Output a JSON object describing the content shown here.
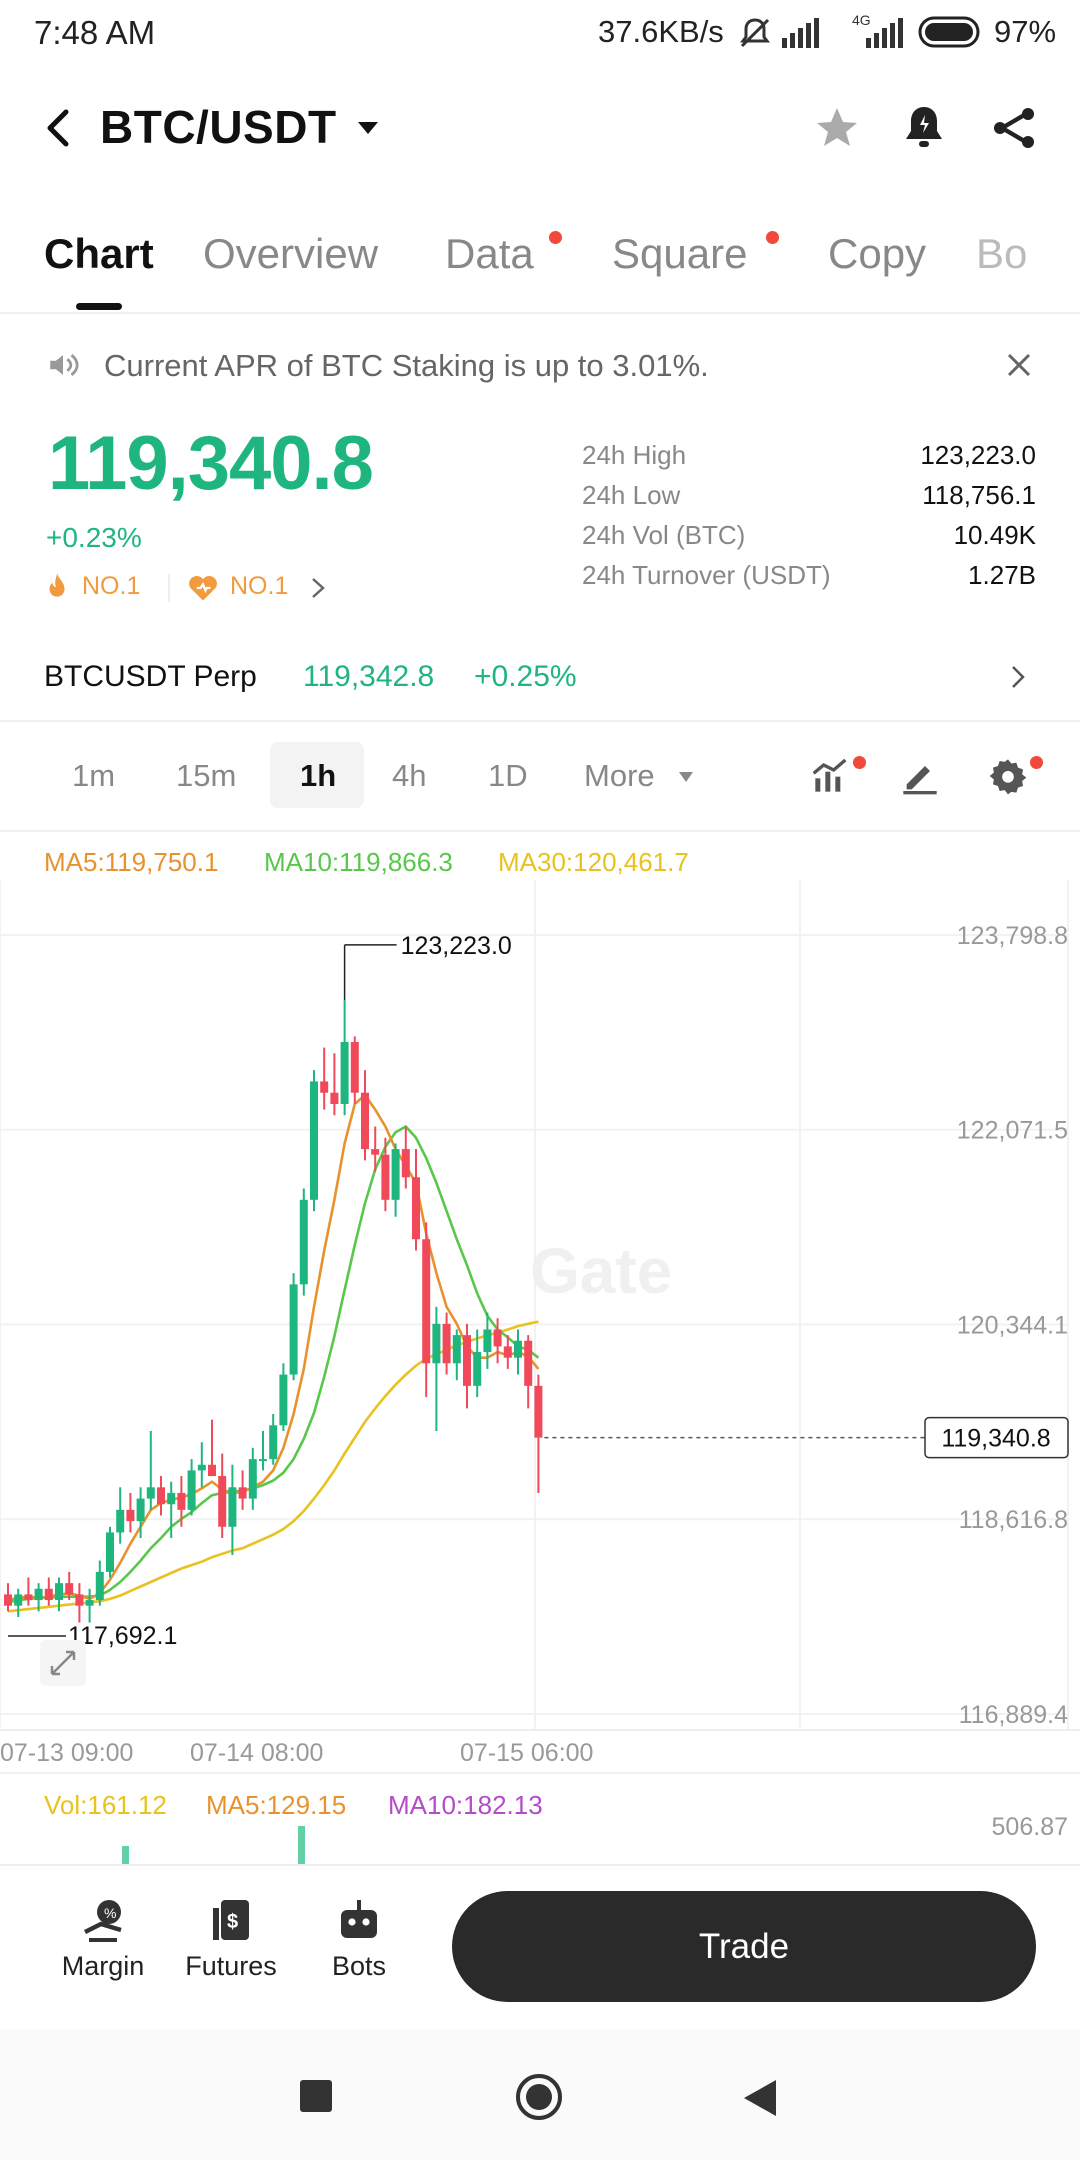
{
  "status_bar": {
    "time": "7:48 AM",
    "speed": "37.6KB/s",
    "network": "4G",
    "battery": "97%"
  },
  "header": {
    "title": "BTC/USDT"
  },
  "tabs": [
    {
      "label": "Chart",
      "active": true,
      "badge": false
    },
    {
      "label": "Overview",
      "active": false,
      "badge": false
    },
    {
      "label": "Data",
      "active": false,
      "badge": true
    },
    {
      "label": "Square",
      "active": false,
      "badge": true
    },
    {
      "label": "Copy",
      "active": false,
      "badge": false
    },
    {
      "label": "Bo",
      "active": false,
      "badge": false
    }
  ],
  "notice": {
    "text": "Current APR of BTC Staking is up to 3.01%."
  },
  "ticker": {
    "price": "119,340.8",
    "change": "+0.23%",
    "rank1": "NO.1",
    "rank2": "NO.1",
    "stats": [
      {
        "label": "24h High",
        "value": "123,223.0"
      },
      {
        "label": "24h Low",
        "value": "118,756.1"
      },
      {
        "label": "24h Vol (BTC)",
        "value": "10.49K"
      },
      {
        "label": "24h Turnover (USDT)",
        "value": "1.27B"
      }
    ]
  },
  "perp": {
    "label": "BTCUSDT Perp",
    "price": "119,342.8",
    "change": "+0.25%"
  },
  "timeframes": [
    "1m",
    "15m",
    "1h",
    "4h",
    "1D",
    "More"
  ],
  "active_timeframe": "1h",
  "ma_legend": [
    {
      "label": "MA5:119,750.1",
      "color": "#e8922e"
    },
    {
      "label": "MA10:119,866.3",
      "color": "#57c84a"
    },
    {
      "label": "MA30:120,461.7",
      "color": "#e8c21e"
    }
  ],
  "chart_data": {
    "type": "candlestick",
    "y_ticks": [
      "123,798.8",
      "122,071.5",
      "120,344.1",
      "118,616.8",
      "116,889.4"
    ],
    "x_ticks": [
      "07-13 09:00",
      "07-14 08:00",
      "07-15 06:00"
    ],
    "ylim": [
      116889.4,
      123798.8
    ],
    "high_label": "123,223.0",
    "low_label": "117,692.1",
    "current_label": "119,340.8",
    "current_value": 119340.8,
    "watermark": "Gate",
    "up_color": "#1fb57f",
    "down_color": "#f04a5a",
    "candles": [
      {
        "o": 117950,
        "h": 118050,
        "l": 117800,
        "c": 117850
      },
      {
        "o": 117850,
        "h": 118000,
        "l": 117750,
        "c": 117950
      },
      {
        "o": 117950,
        "h": 118100,
        "l": 117850,
        "c": 117900
      },
      {
        "o": 117900,
        "h": 118050,
        "l": 117800,
        "c": 118000
      },
      {
        "o": 118000,
        "h": 118100,
        "l": 117850,
        "c": 117900
      },
      {
        "o": 117900,
        "h": 118100,
        "l": 117800,
        "c": 118050
      },
      {
        "o": 118050,
        "h": 118150,
        "l": 117900,
        "c": 117950
      },
      {
        "o": 117950,
        "h": 118050,
        "l": 117700,
        "c": 117850
      },
      {
        "o": 117850,
        "h": 118000,
        "l": 117700,
        "c": 117900
      },
      {
        "o": 117900,
        "h": 118250,
        "l": 117850,
        "c": 118150
      },
      {
        "o": 118150,
        "h": 118550,
        "l": 118100,
        "c": 118500
      },
      {
        "o": 118500,
        "h": 118900,
        "l": 118400,
        "c": 118700
      },
      {
        "o": 118700,
        "h": 118850,
        "l": 118500,
        "c": 118600
      },
      {
        "o": 118600,
        "h": 118900,
        "l": 118450,
        "c": 118800
      },
      {
        "o": 118800,
        "h": 119400,
        "l": 118700,
        "c": 118900
      },
      {
        "o": 118900,
        "h": 119000,
        "l": 118650,
        "c": 118750
      },
      {
        "o": 118750,
        "h": 118950,
        "l": 118450,
        "c": 118850
      },
      {
        "o": 118850,
        "h": 119000,
        "l": 118550,
        "c": 118700
      },
      {
        "o": 118700,
        "h": 119150,
        "l": 118650,
        "c": 119050
      },
      {
        "o": 119050,
        "h": 119300,
        "l": 118900,
        "c": 119100
      },
      {
        "o": 119100,
        "h": 119500,
        "l": 119000,
        "c": 119000
      },
      {
        "o": 119000,
        "h": 119200,
        "l": 118450,
        "c": 118550
      },
      {
        "o": 118550,
        "h": 119100,
        "l": 118300,
        "c": 118900
      },
      {
        "o": 118900,
        "h": 119050,
        "l": 118700,
        "c": 118800
      },
      {
        "o": 118800,
        "h": 119250,
        "l": 118700,
        "c": 119150
      },
      {
        "o": 119150,
        "h": 119400,
        "l": 119050,
        "c": 119150
      },
      {
        "o": 119150,
        "h": 119550,
        "l": 119100,
        "c": 119450
      },
      {
        "o": 119450,
        "h": 120000,
        "l": 119400,
        "c": 119900
      },
      {
        "o": 119900,
        "h": 120800,
        "l": 119850,
        "c": 120700
      },
      {
        "o": 120700,
        "h": 121550,
        "l": 120600,
        "c": 121450
      },
      {
        "o": 121450,
        "h": 122600,
        "l": 121350,
        "c": 122500
      },
      {
        "o": 122500,
        "h": 122800,
        "l": 122250,
        "c": 122400
      },
      {
        "o": 122400,
        "h": 122750,
        "l": 122200,
        "c": 122300
      },
      {
        "o": 122300,
        "h": 123223,
        "l": 122200,
        "c": 122850
      },
      {
        "o": 122850,
        "h": 122900,
        "l": 122300,
        "c": 122400
      },
      {
        "o": 122400,
        "h": 122600,
        "l": 121800,
        "c": 121900
      },
      {
        "o": 121900,
        "h": 122100,
        "l": 121700,
        "c": 121850
      },
      {
        "o": 121850,
        "h": 122000,
        "l": 121350,
        "c": 121450
      },
      {
        "o": 121450,
        "h": 121950,
        "l": 121300,
        "c": 121900
      },
      {
        "o": 121900,
        "h": 122100,
        "l": 121550,
        "c": 121650
      },
      {
        "o": 121650,
        "h": 121900,
        "l": 121000,
        "c": 121100
      },
      {
        "o": 121100,
        "h": 121250,
        "l": 119700,
        "c": 120000
      },
      {
        "o": 120000,
        "h": 120500,
        "l": 119400,
        "c": 120350
      },
      {
        "o": 120350,
        "h": 120450,
        "l": 119900,
        "c": 120000
      },
      {
        "o": 120000,
        "h": 120300,
        "l": 119850,
        "c": 120250
      },
      {
        "o": 120250,
        "h": 120350,
        "l": 119600,
        "c": 119800
      },
      {
        "o": 119800,
        "h": 120300,
        "l": 119700,
        "c": 120100
      },
      {
        "o": 120100,
        "h": 120450,
        "l": 119950,
        "c": 120300
      },
      {
        "o": 120300,
        "h": 120400,
        "l": 120000,
        "c": 120150
      },
      {
        "o": 120150,
        "h": 120250,
        "l": 119950,
        "c": 120050
      },
      {
        "o": 120050,
        "h": 120300,
        "l": 119900,
        "c": 120200
      },
      {
        "o": 120200,
        "h": 120250,
        "l": 119600,
        "c": 119800
      },
      {
        "o": 119800,
        "h": 119900,
        "l": 118850,
        "c": 119340.8
      }
    ],
    "ma5": [
      117900,
      117920,
      117930,
      117920,
      117930,
      117950,
      117960,
      117940,
      117910,
      117960,
      118080,
      118230,
      118400,
      118550,
      118700,
      118760,
      118790,
      118810,
      118840,
      118890,
      118950,
      118880,
      118850,
      118860,
      118900,
      118950,
      119050,
      119250,
      119550,
      119950,
      120500,
      121000,
      121450,
      121950,
      122300,
      122380,
      122250,
      122100,
      121900,
      121750,
      121600,
      121150,
      120800,
      120500,
      120350,
      120150,
      120050,
      120050,
      120100,
      120070,
      120100,
      120060,
      119950
    ],
    "ma10": [
      117880,
      117900,
      117910,
      117920,
      117920,
      117930,
      117930,
      117930,
      117930,
      117940,
      117990,
      118060,
      118150,
      118250,
      118360,
      118450,
      118550,
      118620,
      118680,
      118760,
      118830,
      118850,
      118860,
      118870,
      118890,
      118920,
      118960,
      119030,
      119150,
      119330,
      119560,
      119880,
      120240,
      120650,
      121050,
      121420,
      121720,
      121920,
      122050,
      122100,
      122000,
      121820,
      121600,
      121350,
      121100,
      120870,
      120620,
      120420,
      120300,
      120230,
      120150,
      120120,
      120050
    ],
    "ma30": [
      117800,
      117810,
      117820,
      117830,
      117840,
      117850,
      117860,
      117870,
      117880,
      117890,
      117910,
      117940,
      117980,
      118020,
      118060,
      118100,
      118140,
      118180,
      118210,
      118240,
      118280,
      118310,
      118340,
      118360,
      118400,
      118440,
      118480,
      118530,
      118600,
      118690,
      118800,
      118920,
      119050,
      119200,
      119340,
      119480,
      119600,
      119710,
      119810,
      119900,
      119980,
      120040,
      120080,
      120120,
      120160,
      120190,
      120220,
      120250,
      120270,
      120300,
      120330,
      120350,
      120370
    ]
  },
  "volume_legend": [
    {
      "label": "Vol:161.12",
      "color": "#e8c21e"
    },
    {
      "label": "MA5:129.15",
      "color": "#e8922e"
    },
    {
      "label": "MA10:182.13",
      "color": "#b44bc8"
    }
  ],
  "volume_axis": "506.87",
  "bottom_nav": [
    {
      "label": "Margin",
      "icon": "margin-icon"
    },
    {
      "label": "Futures",
      "icon": "futures-icon"
    },
    {
      "label": "Bots",
      "icon": "bots-icon"
    }
  ],
  "trade_button": "Trade"
}
